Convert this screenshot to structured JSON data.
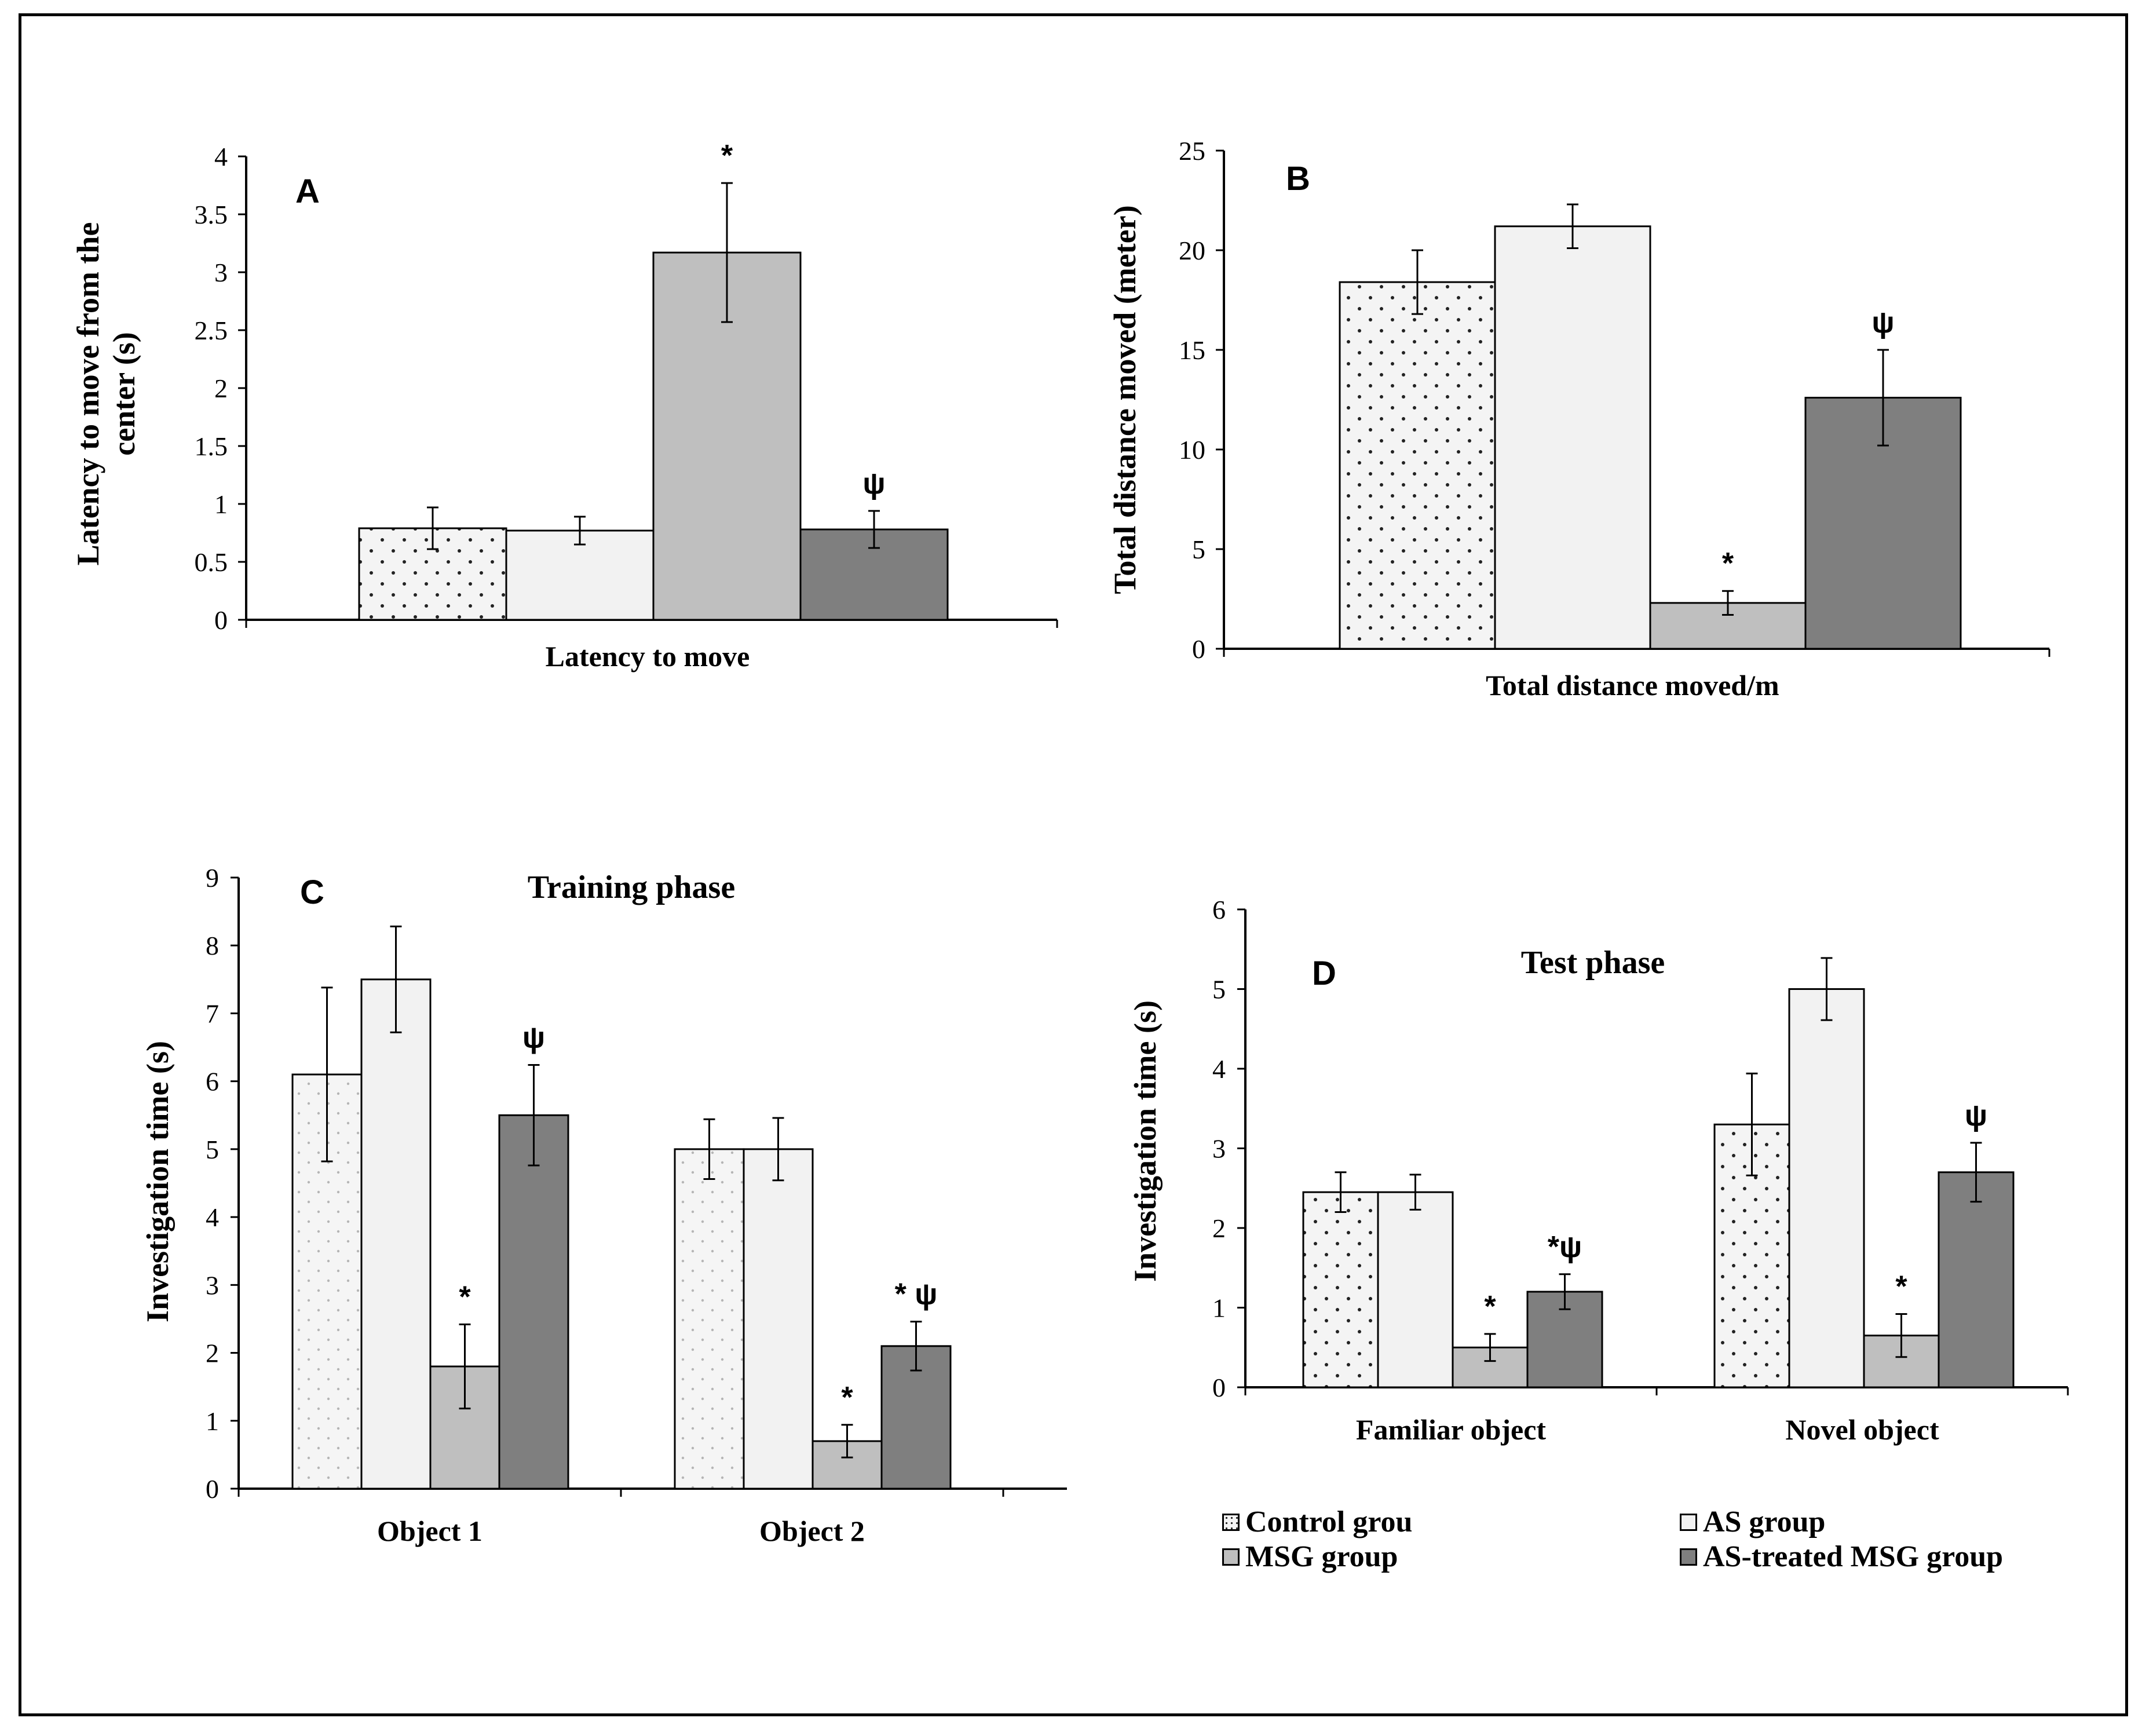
{
  "legend": {
    "items": [
      {
        "label": "Control grou",
        "pattern": "dots",
        "fill": "#f4f4f4"
      },
      {
        "label": "AS group",
        "pattern": "none",
        "fill": "#f2f2f2"
      },
      {
        "label": "MSG group",
        "pattern": "none",
        "fill": "#bfbfbf"
      },
      {
        "label": "AS-treated MSG group",
        "pattern": "none",
        "fill": "#7f7f7f"
      }
    ]
  },
  "chart_data": [
    {
      "panel": "A",
      "type": "bar",
      "title": "",
      "ylabel_lines": [
        "Latency to move from the",
        "center (s)"
      ],
      "xlabel": "",
      "categories": [
        "Latency to move"
      ],
      "ylim": [
        0,
        4
      ],
      "yticks": [
        "0",
        "0.5",
        "1",
        "1.5",
        "2",
        "2.5",
        "3",
        "3.5",
        "4"
      ],
      "series": [
        {
          "name": "Control grou",
          "values": [
            0.79
          ],
          "errors": [
            0.18
          ],
          "annotations": [
            ""
          ]
        },
        {
          "name": "AS group",
          "values": [
            0.77
          ],
          "errors": [
            0.12
          ],
          "annotations": [
            ""
          ]
        },
        {
          "name": "MSG group",
          "values": [
            3.17
          ],
          "errors": [
            0.6
          ],
          "annotations": [
            "*"
          ]
        },
        {
          "name": "AS-treated MSG group",
          "values": [
            0.78
          ],
          "errors": [
            0.16
          ],
          "annotations": [
            "ψ"
          ]
        }
      ]
    },
    {
      "panel": "B",
      "type": "bar",
      "title": "",
      "ylabel_lines": [
        "Total distance moved (meter)"
      ],
      "xlabel": "",
      "categories": [
        "Total distance moved/m"
      ],
      "ylim": [
        0,
        25
      ],
      "yticks": [
        "0",
        "5",
        "10",
        "15",
        "20",
        "25"
      ],
      "series": [
        {
          "name": "Control grou",
          "values": [
            18.4
          ],
          "errors": [
            1.6
          ],
          "annotations": [
            ""
          ]
        },
        {
          "name": "AS group",
          "values": [
            21.2
          ],
          "errors": [
            1.1
          ],
          "annotations": [
            ""
          ]
        },
        {
          "name": "MSG group",
          "values": [
            2.3
          ],
          "errors": [
            0.6
          ],
          "annotations": [
            "*"
          ]
        },
        {
          "name": "AS-treated MSG group",
          "values": [
            12.6
          ],
          "errors": [
            2.4
          ],
          "annotations": [
            "ψ"
          ]
        }
      ]
    },
    {
      "panel": "C",
      "type": "bar",
      "title": "Training  phase",
      "ylabel_lines": [
        "Investigation time (s)"
      ],
      "xlabel": "",
      "categories": [
        "Object 1",
        "Object 2"
      ],
      "ylim": [
        0,
        9
      ],
      "yticks": [
        "0",
        "1",
        "2",
        "3",
        "4",
        "5",
        "6",
        "7",
        "8",
        "9"
      ],
      "series": [
        {
          "name": "Control grou",
          "values": [
            6.1,
            5.0
          ],
          "errors": [
            1.28,
            0.44
          ],
          "annotations": [
            "",
            ""
          ]
        },
        {
          "name": "AS group",
          "values": [
            7.5,
            5.0
          ],
          "errors": [
            0.78,
            0.46
          ],
          "annotations": [
            "",
            ""
          ]
        },
        {
          "name": "MSG group",
          "values": [
            1.8,
            0.7
          ],
          "errors": [
            0.62,
            0.24
          ],
          "annotations": [
            "*",
            "*"
          ]
        },
        {
          "name": "AS-treated MSG group",
          "values": [
            5.5,
            2.1
          ],
          "errors": [
            0.74,
            0.36
          ],
          "annotations": [
            "ψ",
            "* ψ"
          ]
        }
      ]
    },
    {
      "panel": "D",
      "type": "bar",
      "title": "Test  phase",
      "ylabel_lines": [
        "Investigation time (s)"
      ],
      "xlabel": "",
      "categories": [
        "Familiar object",
        "Novel object"
      ],
      "ylim": [
        0,
        6
      ],
      "yticks": [
        "0",
        "1",
        "2",
        "3",
        "4",
        "5",
        "6"
      ],
      "series": [
        {
          "name": "Control grou",
          "values": [
            2.45,
            3.3
          ],
          "errors": [
            0.25,
            0.64
          ],
          "annotations": [
            "",
            ""
          ]
        },
        {
          "name": "AS group",
          "values": [
            2.45,
            5.0
          ],
          "errors": [
            0.22,
            0.39
          ],
          "annotations": [
            "",
            ""
          ]
        },
        {
          "name": "MSG group",
          "values": [
            0.5,
            0.65
          ],
          "errors": [
            0.17,
            0.27
          ],
          "annotations": [
            "*",
            "*"
          ]
        },
        {
          "name": "AS-treated MSG group",
          "values": [
            1.2,
            2.7
          ],
          "errors": [
            0.22,
            0.37
          ],
          "annotations": [
            "*ψ",
            "ψ"
          ]
        }
      ]
    }
  ]
}
